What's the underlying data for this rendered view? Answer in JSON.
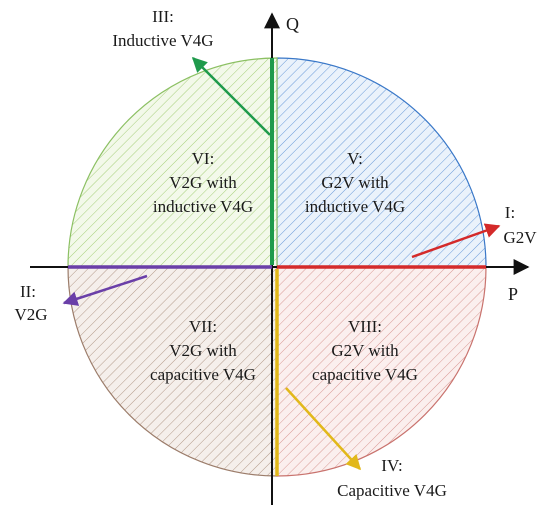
{
  "diagram": {
    "axes": {
      "horizontal_label": "P",
      "vertical_label": "Q"
    },
    "modes": [
      {
        "id": "I",
        "line1": "I:",
        "line2": "G2V",
        "color": "#d42a2a"
      },
      {
        "id": "II",
        "line1": "II:",
        "line2": "V2G",
        "color": "#6a3fa8"
      },
      {
        "id": "III",
        "line1": "III:",
        "line2": "Inductive V4G",
        "color": "#1f9a4c"
      },
      {
        "id": "IV",
        "line1": "IV:",
        "line2": "Capacitive V4G",
        "color": "#e2b81a"
      }
    ],
    "quadrants": [
      {
        "id": "V",
        "line1": "V:",
        "line2": "G2V with",
        "line3": "inductive V4G",
        "hatch_color": "#6a9ad8",
        "fill": "#eaf2fb"
      },
      {
        "id": "VI",
        "line1": "VI:",
        "line2": "V2G with",
        "line3": "inductive V4G",
        "hatch_color": "#a6cf7a",
        "fill": "#f3f9ea"
      },
      {
        "id": "VII",
        "line1": "VII:",
        "line2": "V2G with",
        "line3": "capacitive V4G",
        "hatch_color": "#b39a8a",
        "fill": "#f5efeb"
      },
      {
        "id": "VIII",
        "line1": "VIII:",
        "line2": "G2V with",
        "line3": "capacitive V4G",
        "hatch_color": "#d99a96",
        "fill": "#fbefee"
      }
    ],
    "circle_colors": {
      "q1": "#3a78c8",
      "q2": "#8cc063",
      "q3": "#9c7d6b",
      "q4": "#c9736e"
    },
    "axis_color": "#111111"
  }
}
